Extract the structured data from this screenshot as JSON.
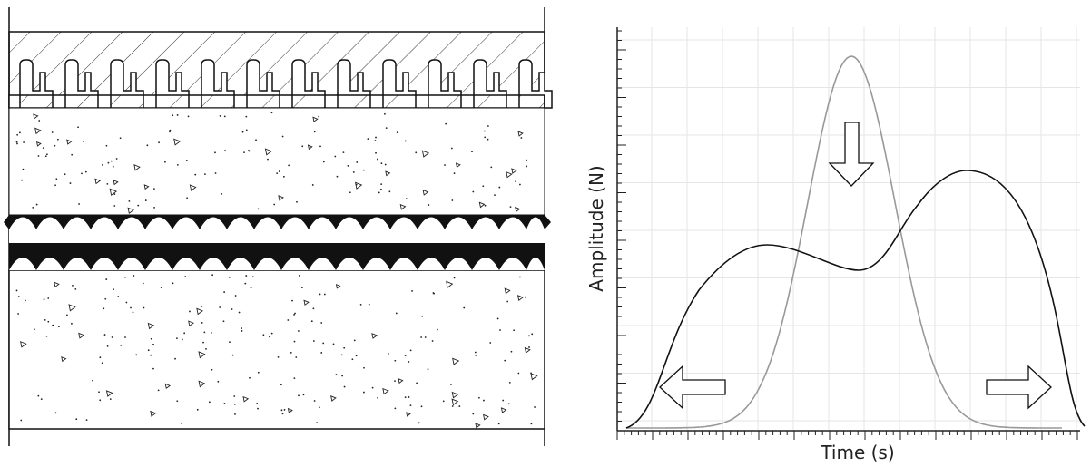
{
  "right_panel": {
    "xlabel": "Time (s)",
    "ylabel": "Amplitude (N)"
  },
  "chart_data": {
    "type": "line",
    "xlabel": "Time (s)",
    "ylabel": "Amplitude (N)",
    "grid": true,
    "series": [
      {
        "color": "#999999",
        "shape": "single tall peak"
      },
      {
        "color": "#111111",
        "shape": "double hump, right hump higher"
      }
    ],
    "annotations": [
      {
        "glyph": "arrow-down",
        "meaning": "compression"
      },
      {
        "glyph": "arrow-left",
        "meaning": "expansion"
      },
      {
        "glyph": "arrow-right",
        "meaning": "expansion"
      }
    ]
  },
  "left_panel": {
    "layers": [
      "hatched-plate-with-teeth",
      "concrete-upper",
      "dark-interface-double-band",
      "concrete-lower"
    ]
  }
}
